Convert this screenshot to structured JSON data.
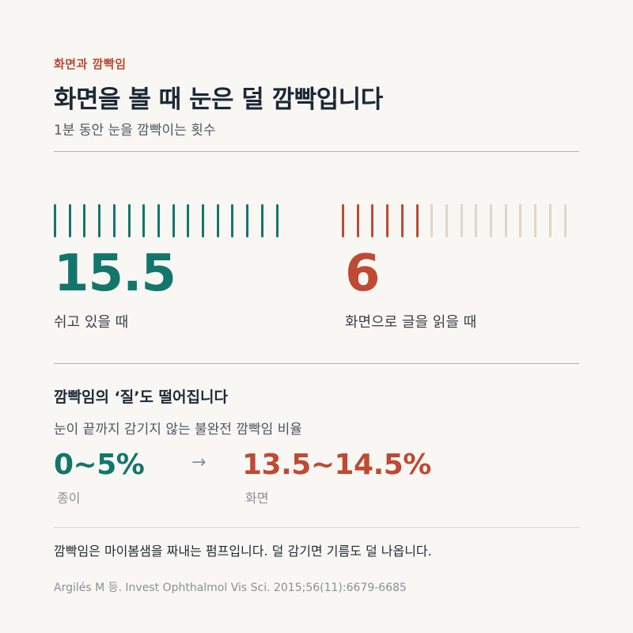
{
  "colors": {
    "teal": "#12766b",
    "rust": "#bf4a33",
    "faded": "#dcd6cd"
  },
  "header": {
    "kicker": "화면과 깜빡임",
    "title": "화면을 볼 때 눈은 덜 깜빡입니다",
    "subtitle": "1분 동안 눈을 깜빡이는 횟수"
  },
  "comparison": {
    "rest": {
      "value": "15.5",
      "label": "쉬고 있을 때",
      "tick_count": 16
    },
    "screen": {
      "value": "6",
      "label": "화면으로 글을 읽을 때",
      "active_ticks": 6,
      "total_ticks": 16
    }
  },
  "quality": {
    "title": "깜빡임의 ‘질’도 떨어집니다",
    "subtitle": "눈이 끝까지 감기지 않는 불완전 깜빡임 비율",
    "paper": {
      "value": "0~5%",
      "label": "종이"
    },
    "arrow": "→",
    "screen": {
      "value": "13.5~14.5%",
      "label": "화면"
    }
  },
  "note": "깜빡임은 마이봄샘을 짜내는 펌프입니다. 덜 감기면 기름도 덜 나옵니다.",
  "source": "Argilés M 등. Invest Ophthalmol Vis Sci. 2015;56(11):6679-6685"
}
